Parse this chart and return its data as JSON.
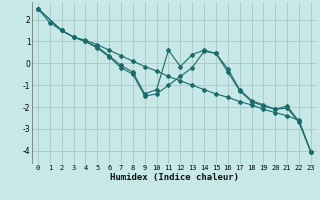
{
  "xlabel": "Humidex (Indice chaleur)",
  "bg_color": "#c8e8e8",
  "grid_color": "#aacccc",
  "line_color": "#1a6b6b",
  "xlim": [
    -0.5,
    23.5
  ],
  "ylim": [
    -4.6,
    2.8
  ],
  "yticks": [
    -4,
    -3,
    -2,
    -1,
    0,
    1,
    2
  ],
  "xticks": [
    0,
    1,
    2,
    3,
    4,
    5,
    6,
    7,
    8,
    9,
    10,
    11,
    12,
    13,
    14,
    15,
    16,
    17,
    18,
    19,
    20,
    21,
    22,
    23
  ],
  "line1_x": [
    0,
    1,
    2,
    3,
    4,
    5,
    6,
    7,
    8,
    9,
    10,
    11,
    12,
    13,
    14,
    15,
    16,
    17,
    18,
    19,
    20,
    21,
    22,
    23
  ],
  "line1_y": [
    2.5,
    1.85,
    1.5,
    1.2,
    1.05,
    0.85,
    0.6,
    0.35,
    0.1,
    -0.15,
    -0.35,
    -0.6,
    -0.8,
    -1.0,
    -1.2,
    -1.4,
    -1.55,
    -1.75,
    -1.9,
    -2.1,
    -2.25,
    -2.4,
    -2.6,
    -4.05
  ],
  "line2_x": [
    0,
    2,
    3,
    4,
    5,
    6,
    7,
    8,
    9,
    10,
    11,
    12,
    13,
    14,
    15,
    16,
    17,
    18,
    19,
    20,
    21,
    22,
    23
  ],
  "line2_y": [
    2.5,
    1.5,
    1.2,
    1.0,
    0.75,
    0.35,
    -0.1,
    -0.4,
    -1.4,
    -1.2,
    0.6,
    -0.15,
    0.4,
    0.6,
    0.45,
    -0.25,
    -1.2,
    -1.7,
    -1.9,
    -2.1,
    -1.95,
    -2.65,
    -4.05
  ],
  "line3_x": [
    0,
    2,
    3,
    4,
    5,
    6,
    7,
    8,
    9,
    10,
    11,
    12,
    13,
    14,
    15,
    16,
    17,
    18,
    19,
    20,
    21,
    22,
    23
  ],
  "line3_y": [
    2.5,
    1.5,
    1.2,
    1.0,
    0.7,
    0.3,
    -0.2,
    -0.5,
    -1.5,
    -1.4,
    -1.0,
    -0.6,
    -0.2,
    0.55,
    0.45,
    -0.4,
    -1.25,
    -1.75,
    -1.95,
    -2.1,
    -2.05,
    -2.7,
    -4.05
  ]
}
